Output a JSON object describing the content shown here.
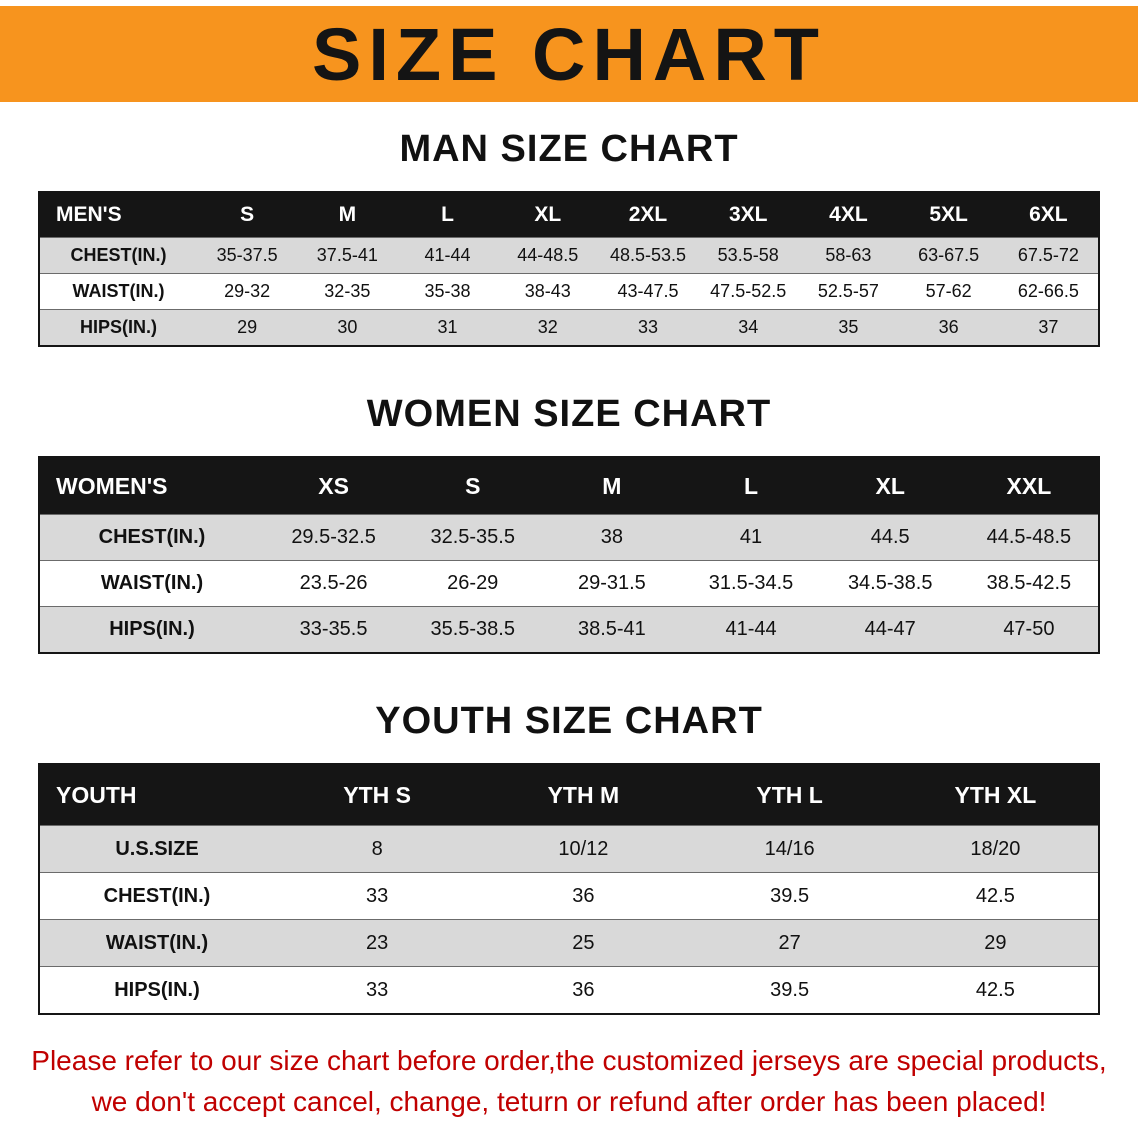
{
  "banner": {
    "title": "SIZE CHART",
    "background_color": "#f7941e",
    "text_color": "#141414"
  },
  "sections": [
    {
      "heading": "MAN SIZE CHART",
      "table": {
        "header_label": "MEN'S",
        "columns": [
          "S",
          "M",
          "L",
          "XL",
          "2XL",
          "3XL",
          "4XL",
          "5XL",
          "6XL"
        ],
        "rows": [
          {
            "label": "CHEST(IN.)",
            "values": [
              "35-37.5",
              "37.5-41",
              "41-44",
              "44-48.5",
              "48.5-53.5",
              "53.5-58",
              "58-63",
              "63-67.5",
              "67.5-72"
            ]
          },
          {
            "label": "WAIST(IN.)",
            "values": [
              "29-32",
              "32-35",
              "35-38",
              "38-43",
              "43-47.5",
              "47.5-52.5",
              "52.5-57",
              "57-62",
              "62-66.5"
            ]
          },
          {
            "label": "HIPS(IN.)",
            "values": [
              "29",
              "30",
              "31",
              "32",
              "33",
              "34",
              "35",
              "36",
              "37"
            ]
          }
        ]
      }
    },
    {
      "heading": "WOMEN SIZE CHART",
      "table": {
        "header_label": "WOMEN'S",
        "columns": [
          "XS",
          "S",
          "M",
          "L",
          "XL",
          "XXL"
        ],
        "rows": [
          {
            "label": "CHEST(IN.)",
            "values": [
              "29.5-32.5",
              "32.5-35.5",
              "38",
              "41",
              "44.5",
              "44.5-48.5"
            ]
          },
          {
            "label": "WAIST(IN.)",
            "values": [
              "23.5-26",
              "26-29",
              "29-31.5",
              "31.5-34.5",
              "34.5-38.5",
              "38.5-42.5"
            ]
          },
          {
            "label": "HIPS(IN.)",
            "values": [
              "33-35.5",
              "35.5-38.5",
              "38.5-41",
              "41-44",
              "44-47",
              "47-50"
            ]
          }
        ]
      }
    },
    {
      "heading": "YOUTH SIZE CHART",
      "table": {
        "header_label": "YOUTH",
        "columns": [
          "YTH S",
          "YTH M",
          "YTH L",
          "YTH XL"
        ],
        "rows": [
          {
            "label": "U.S.SIZE",
            "values": [
              "8",
              "10/12",
              "14/16",
              "18/20"
            ]
          },
          {
            "label": "CHEST(IN.)",
            "values": [
              "33",
              "36",
              "39.5",
              "42.5"
            ]
          },
          {
            "label": "WAIST(IN.)",
            "values": [
              "23",
              "25",
              "27",
              "29"
            ]
          },
          {
            "label": "HIPS(IN.)",
            "values": [
              "33",
              "36",
              "39.5",
              "42.5"
            ]
          }
        ]
      }
    }
  ],
  "footer": {
    "line1": "Please refer to our size chart before order,the customized jerseys are special products,",
    "line2": "we don't accept cancel, change, teturn or refund after order has been placed!",
    "text_color": "#c00000"
  },
  "table_style": {
    "header_background": "#151515",
    "header_text_color": "#ffffff",
    "shaded_row_color": "#d9d9d9"
  }
}
